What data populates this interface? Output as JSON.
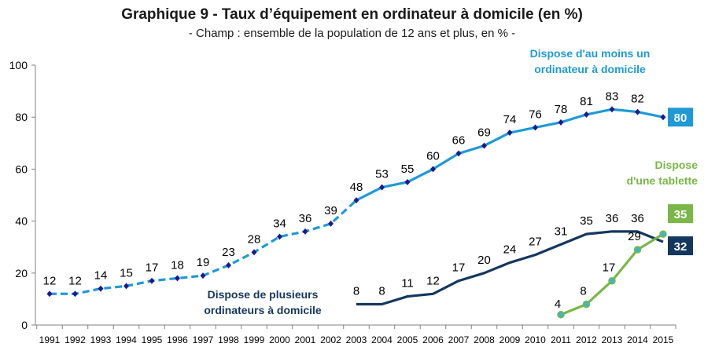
{
  "chart_data": {
    "type": "line",
    "title": "Graphique 9 - Taux d’équipement en ordinateur à domicile (en %)",
    "subtitle": "- Champ : ensemble de la population de 12 ans et plus, en % -",
    "ylim": [
      0,
      100
    ],
    "yticks": [
      "0",
      "20",
      "40",
      "60",
      "80",
      "100"
    ],
    "x": [
      "1991",
      "1992",
      "1993",
      "1994",
      "1995",
      "1996",
      "1997",
      "1998",
      "1999",
      "2000",
      "2001",
      "2002",
      "2003",
      "2004",
      "2005",
      "2006",
      "2007",
      "2008",
      "2009",
      "2010",
      "2011",
      "2012",
      "2013",
      "2014",
      "2015"
    ],
    "grid": false,
    "series": [
      {
        "name": "Dispose d'au moins un ordinateur à domicile",
        "label_lines": [
          "Dispose d'au moins un",
          "ordinateur à domicile"
        ],
        "color": "#1f9ad6",
        "end_value": "80",
        "dashed_until": "2003",
        "markers": "diamond",
        "points": [
          {
            "x": "1991",
            "y": 12
          },
          {
            "x": "1992",
            "y": 12
          },
          {
            "x": "1993",
            "y": 14
          },
          {
            "x": "1994",
            "y": 15
          },
          {
            "x": "1995",
            "y": 17
          },
          {
            "x": "1996",
            "y": 18
          },
          {
            "x": "1997",
            "y": 19
          },
          {
            "x": "1998",
            "y": 23
          },
          {
            "x": "1999",
            "y": 28
          },
          {
            "x": "2000",
            "y": 34
          },
          {
            "x": "2001",
            "y": 36
          },
          {
            "x": "2002",
            "y": 39
          },
          {
            "x": "2003",
            "y": 48
          },
          {
            "x": "2004",
            "y": 53
          },
          {
            "x": "2005",
            "y": 55
          },
          {
            "x": "2006",
            "y": 60
          },
          {
            "x": "2007",
            "y": 66
          },
          {
            "x": "2008",
            "y": 69
          },
          {
            "x": "2009",
            "y": 74
          },
          {
            "x": "2010",
            "y": 76
          },
          {
            "x": "2011",
            "y": 78
          },
          {
            "x": "2012",
            "y": 81
          },
          {
            "x": "2013",
            "y": 83
          },
          {
            "x": "2014",
            "y": 82
          },
          {
            "x": "2015",
            "y": 80
          }
        ]
      },
      {
        "name": "Dispose de plusieurs ordinateurs à domicile",
        "label_lines": [
          "Dispose de plusieurs",
          "ordinateurs à domicile"
        ],
        "color": "#14375e",
        "end_value": "32",
        "markers": "none",
        "points": [
          {
            "x": "2003",
            "y": 8
          },
          {
            "x": "2004",
            "y": 8
          },
          {
            "x": "2005",
            "y": 11
          },
          {
            "x": "2006",
            "y": 12
          },
          {
            "x": "2007",
            "y": 17
          },
          {
            "x": "2008",
            "y": 20
          },
          {
            "x": "2009",
            "y": 24
          },
          {
            "x": "2010",
            "y": 27
          },
          {
            "x": "2011",
            "y": 31
          },
          {
            "x": "2012",
            "y": 35
          },
          {
            "x": "2013",
            "y": 36
          },
          {
            "x": "2014",
            "y": 36
          },
          {
            "x": "2015",
            "y": 32
          }
        ]
      },
      {
        "name": "Dispose d'une tablette",
        "label_lines": [
          "Dispose",
          "d'une tablette"
        ],
        "color": "#7ab648",
        "end_value": "35",
        "markers": "circle",
        "points": [
          {
            "x": "2011",
            "y": 4
          },
          {
            "x": "2012",
            "y": 8
          },
          {
            "x": "2013",
            "y": 17
          },
          {
            "x": "2014",
            "y": 29
          },
          {
            "x": "2015",
            "y": 35
          }
        ]
      }
    ]
  }
}
